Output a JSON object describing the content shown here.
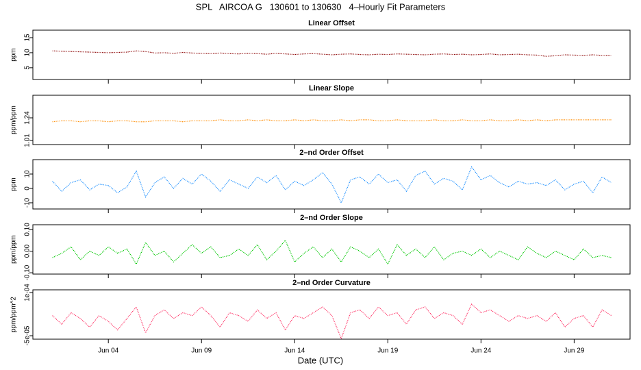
{
  "title": "SPL   AIRCOA G   130601 to 130630   4–Hourly Fit Parameters",
  "xlabel": "Date (UTC)",
  "chart_data": [
    {
      "type": "line",
      "title": "Linear Offset",
      "ylabel": "ppm",
      "color": "#8b0000",
      "x": [
        1,
        1.5,
        2,
        2.5,
        3,
        3.5,
        4,
        4.5,
        5,
        5.5,
        6,
        6.5,
        7,
        7.5,
        8,
        8.5,
        9,
        9.5,
        10,
        10.5,
        11,
        11.5,
        12,
        12.5,
        13,
        13.5,
        14,
        14.5,
        15,
        15.5,
        16,
        16.5,
        17,
        17.5,
        18,
        18.5,
        19,
        19.5,
        20,
        20.5,
        21,
        21.5,
        22,
        22.5,
        23,
        23.5,
        24,
        24.5,
        25,
        25.5,
        26,
        26.5,
        27,
        27.5,
        28,
        28.5,
        29,
        29.5,
        30,
        30.5,
        31
      ],
      "values": [
        10.6,
        10.5,
        10.4,
        10.3,
        10.2,
        10.1,
        10.0,
        10.1,
        10.2,
        10.6,
        10.4,
        9.9,
        10.0,
        9.8,
        10.1,
        9.9,
        9.8,
        9.7,
        9.9,
        9.7,
        9.6,
        9.8,
        9.7,
        9.5,
        9.8,
        9.6,
        9.4,
        9.6,
        9.7,
        9.5,
        9.3,
        9.5,
        9.6,
        9.4,
        9.3,
        9.5,
        9.4,
        9.6,
        9.5,
        9.4,
        9.3,
        9.5,
        9.6,
        9.4,
        9.5,
        9.3,
        9.4,
        9.6,
        9.3,
        9.4,
        9.5,
        9.3,
        9.2,
        8.8,
        9.0,
        9.3,
        9.2,
        9.1,
        9.3,
        9.1,
        9.0
      ],
      "xlim": [
        -0.05,
        32.0
      ],
      "xticks": [
        4,
        9,
        14,
        19,
        24,
        29
      ],
      "ylim": [
        1.1,
        17.5
      ],
      "yticks": [
        5,
        10,
        15
      ]
    },
    {
      "type": "line",
      "title": "Linear Slope",
      "ylabel": "ppm/ppm",
      "color": "#ff8c00",
      "x": [
        1,
        1.5,
        2,
        2.5,
        3,
        3.5,
        4,
        4.5,
        5,
        5.5,
        6,
        6.5,
        7,
        7.5,
        8,
        8.5,
        9,
        9.5,
        10,
        10.5,
        11,
        11.5,
        12,
        12.5,
        13,
        13.5,
        14,
        14.5,
        15,
        15.5,
        16,
        16.5,
        17,
        17.5,
        18,
        18.5,
        19,
        19.5,
        20,
        20.5,
        21,
        21.5,
        22,
        22.5,
        23,
        23.5,
        24,
        24.5,
        25,
        25.5,
        26,
        26.5,
        27,
        27.5,
        28,
        28.5,
        29,
        29.5,
        30,
        30.5,
        31
      ],
      "values": [
        1.2,
        1.21,
        1.21,
        1.2,
        1.21,
        1.21,
        1.2,
        1.21,
        1.21,
        1.2,
        1.2,
        1.21,
        1.21,
        1.21,
        1.2,
        1.21,
        1.21,
        1.21,
        1.22,
        1.21,
        1.21,
        1.22,
        1.21,
        1.22,
        1.21,
        1.21,
        1.22,
        1.21,
        1.22,
        1.21,
        1.21,
        1.22,
        1.21,
        1.22,
        1.22,
        1.21,
        1.21,
        1.22,
        1.21,
        1.21,
        1.21,
        1.22,
        1.21,
        1.21,
        1.22,
        1.21,
        1.21,
        1.22,
        1.21,
        1.21,
        1.22,
        1.21,
        1.22,
        1.21,
        1.22,
        1.22,
        1.22,
        1.22,
        1.22,
        1.22,
        1.22
      ],
      "xlim": [
        -0.05,
        32.0
      ],
      "xticks": [
        4,
        9,
        14,
        19,
        24,
        29
      ],
      "ylim": [
        0.968,
        1.47
      ],
      "yticks": [
        1.01,
        1.24
      ]
    },
    {
      "type": "line",
      "title": "2–nd Order Offset",
      "ylabel": "ppm",
      "color": "#1e90ff",
      "x": [
        1,
        1.5,
        2,
        2.5,
        3,
        3.5,
        4,
        4.5,
        5,
        5.5,
        6,
        6.5,
        7,
        7.5,
        8,
        8.5,
        9,
        9.5,
        10,
        10.5,
        11,
        11.5,
        12,
        12.5,
        13,
        13.5,
        14,
        14.5,
        15,
        15.5,
        16,
        16.5,
        17,
        17.5,
        18,
        18.5,
        19,
        19.5,
        20,
        20.5,
        21,
        21.5,
        22,
        22.5,
        23,
        23.5,
        24,
        24.5,
        25,
        25.5,
        26,
        26.5,
        27,
        27.5,
        28,
        28.5,
        29,
        29.5,
        30,
        30.5,
        31
      ],
      "values": [
        5,
        -2,
        4,
        6,
        -1,
        3,
        2,
        -3,
        1,
        12,
        -6,
        4,
        8,
        0,
        7,
        3,
        10,
        5,
        -2,
        6,
        3,
        0,
        8,
        4,
        9,
        -1,
        5,
        2,
        6,
        11,
        3,
        -10,
        6,
        8,
        3,
        10,
        4,
        6,
        -2,
        9,
        12,
        3,
        7,
        5,
        -1,
        15,
        6,
        9,
        4,
        1,
        5,
        3,
        4,
        2,
        6,
        -1,
        3,
        5,
        -3,
        8,
        4
      ],
      "xlim": [
        -0.05,
        32.0
      ],
      "xticks": [
        4,
        9,
        14,
        19,
        24,
        29
      ],
      "ylim": [
        -14.3,
        20
      ],
      "yticks": [
        -10,
        0,
        10
      ]
    },
    {
      "type": "line",
      "title": "2–nd Order Slope",
      "ylabel": "ppm/ppm",
      "color": "#00c800",
      "x": [
        1,
        1.5,
        2,
        2.5,
        3,
        3.5,
        4,
        4.5,
        5,
        5.5,
        6,
        6.5,
        7,
        7.5,
        8,
        8.5,
        9,
        9.5,
        10,
        10.5,
        11,
        11.5,
        12,
        12.5,
        13,
        13.5,
        14,
        14.5,
        15,
        15.5,
        16,
        16.5,
        17,
        17.5,
        18,
        18.5,
        19,
        19.5,
        20,
        20.5,
        21,
        21.5,
        22,
        22.5,
        23,
        23.5,
        24,
        24.5,
        25,
        25.5,
        26,
        26.5,
        27,
        27.5,
        28,
        28.5,
        29,
        29.5,
        30,
        30.5,
        31
      ],
      "values": [
        -0.03,
        -0.01,
        0.02,
        -0.04,
        0.0,
        -0.02,
        0.02,
        -0.01,
        0.01,
        -0.06,
        0.04,
        -0.02,
        0.0,
        -0.05,
        -0.01,
        0.03,
        -0.01,
        0.02,
        -0.03,
        -0.02,
        0.01,
        -0.02,
        0.03,
        -0.04,
        0.0,
        0.05,
        -0.05,
        -0.01,
        0.02,
        -0.03,
        0.01,
        -0.05,
        0.02,
        0.0,
        -0.03,
        0.01,
        -0.06,
        0.03,
        -0.02,
        0.01,
        -0.03,
        0.02,
        -0.04,
        -0.01,
        0.0,
        -0.02,
        0.01,
        -0.03,
        0.0,
        -0.02,
        -0.04,
        0.02,
        -0.01,
        -0.03,
        0.0,
        -0.02,
        -0.04,
        0.01,
        -0.03,
        -0.02,
        -0.03
      ],
      "xlim": [
        -0.05,
        32.0
      ],
      "xticks": [
        4,
        9,
        14,
        19,
        24,
        29
      ],
      "ylim": [
        -0.106,
        0.122
      ],
      "yticks": [
        {
          "value": -0.1,
          "label": "-0.10"
        },
        {
          "value": 0,
          "label": "0.00"
        },
        {
          "value": 0.1,
          "label": "0.10"
        }
      ]
    },
    {
      "type": "line",
      "title": "2–nd Order Curvature",
      "ylabel": "ppm/ppm^2",
      "color": "#ff3366",
      "x": [
        1,
        1.5,
        2,
        2.5,
        3,
        3.5,
        4,
        4.5,
        5,
        5.5,
        6,
        6.5,
        7,
        7.5,
        8,
        8.5,
        9,
        9.5,
        10,
        10.5,
        11,
        11.5,
        12,
        12.5,
        13,
        13.5,
        14,
        14.5,
        15,
        15.5,
        16,
        16.5,
        17,
        17.5,
        18,
        18.5,
        19,
        19.5,
        20,
        20.5,
        21,
        21.5,
        22,
        22.5,
        23,
        23.5,
        24,
        24.5,
        25,
        25.5,
        26,
        26.5,
        27,
        27.5,
        28,
        28.5,
        29,
        29.5,
        30,
        30.5,
        31
      ],
      "values": [
        2e-05,
        -1e-05,
        3e-05,
        1e-05,
        -2e-05,
        2e-05,
        0,
        -3e-05,
        1e-05,
        5e-05,
        -4e-05,
        2e-05,
        4e-05,
        1e-05,
        3e-05,
        2e-05,
        5e-05,
        2e-05,
        -2e-05,
        3e-05,
        2e-05,
        0,
        4e-05,
        1e-05,
        3e-05,
        -3e-05,
        2e-05,
        1e-05,
        3e-05,
        5e-05,
        2e-05,
        -6e-05,
        3e-05,
        4e-05,
        1e-05,
        5e-05,
        2e-05,
        3e-05,
        -1e-05,
        4e-05,
        5e-05,
        1e-05,
        3e-05,
        2e-05,
        -1e-05,
        6e-05,
        3e-05,
        4e-05,
        2e-05,
        0,
        2e-05,
        1e-05,
        2e-05,
        0,
        3e-05,
        -2e-05,
        1e-05,
        2e-05,
        -2e-05,
        4e-05,
        2e-05
      ],
      "xlim": [
        -0.05,
        32.0
      ],
      "xticks": [
        {
          "value": 4,
          "label": "Jun 04"
        },
        {
          "value": 9,
          "label": "Jun 09"
        },
        {
          "value": 14,
          "label": "Jun 14"
        },
        {
          "value": 19,
          "label": "Jun 19"
        },
        {
          "value": 24,
          "label": "Jun 24"
        },
        {
          "value": 29,
          "label": "Jun 29"
        }
      ],
      "ylim": [
        -6.19e-05,
        0.0001095
      ],
      "yticks": [
        {
          "value": -5e-05,
          "label": "-5e-05"
        },
        {
          "value": 0.0001,
          "label": "1e-04"
        }
      ]
    }
  ]
}
